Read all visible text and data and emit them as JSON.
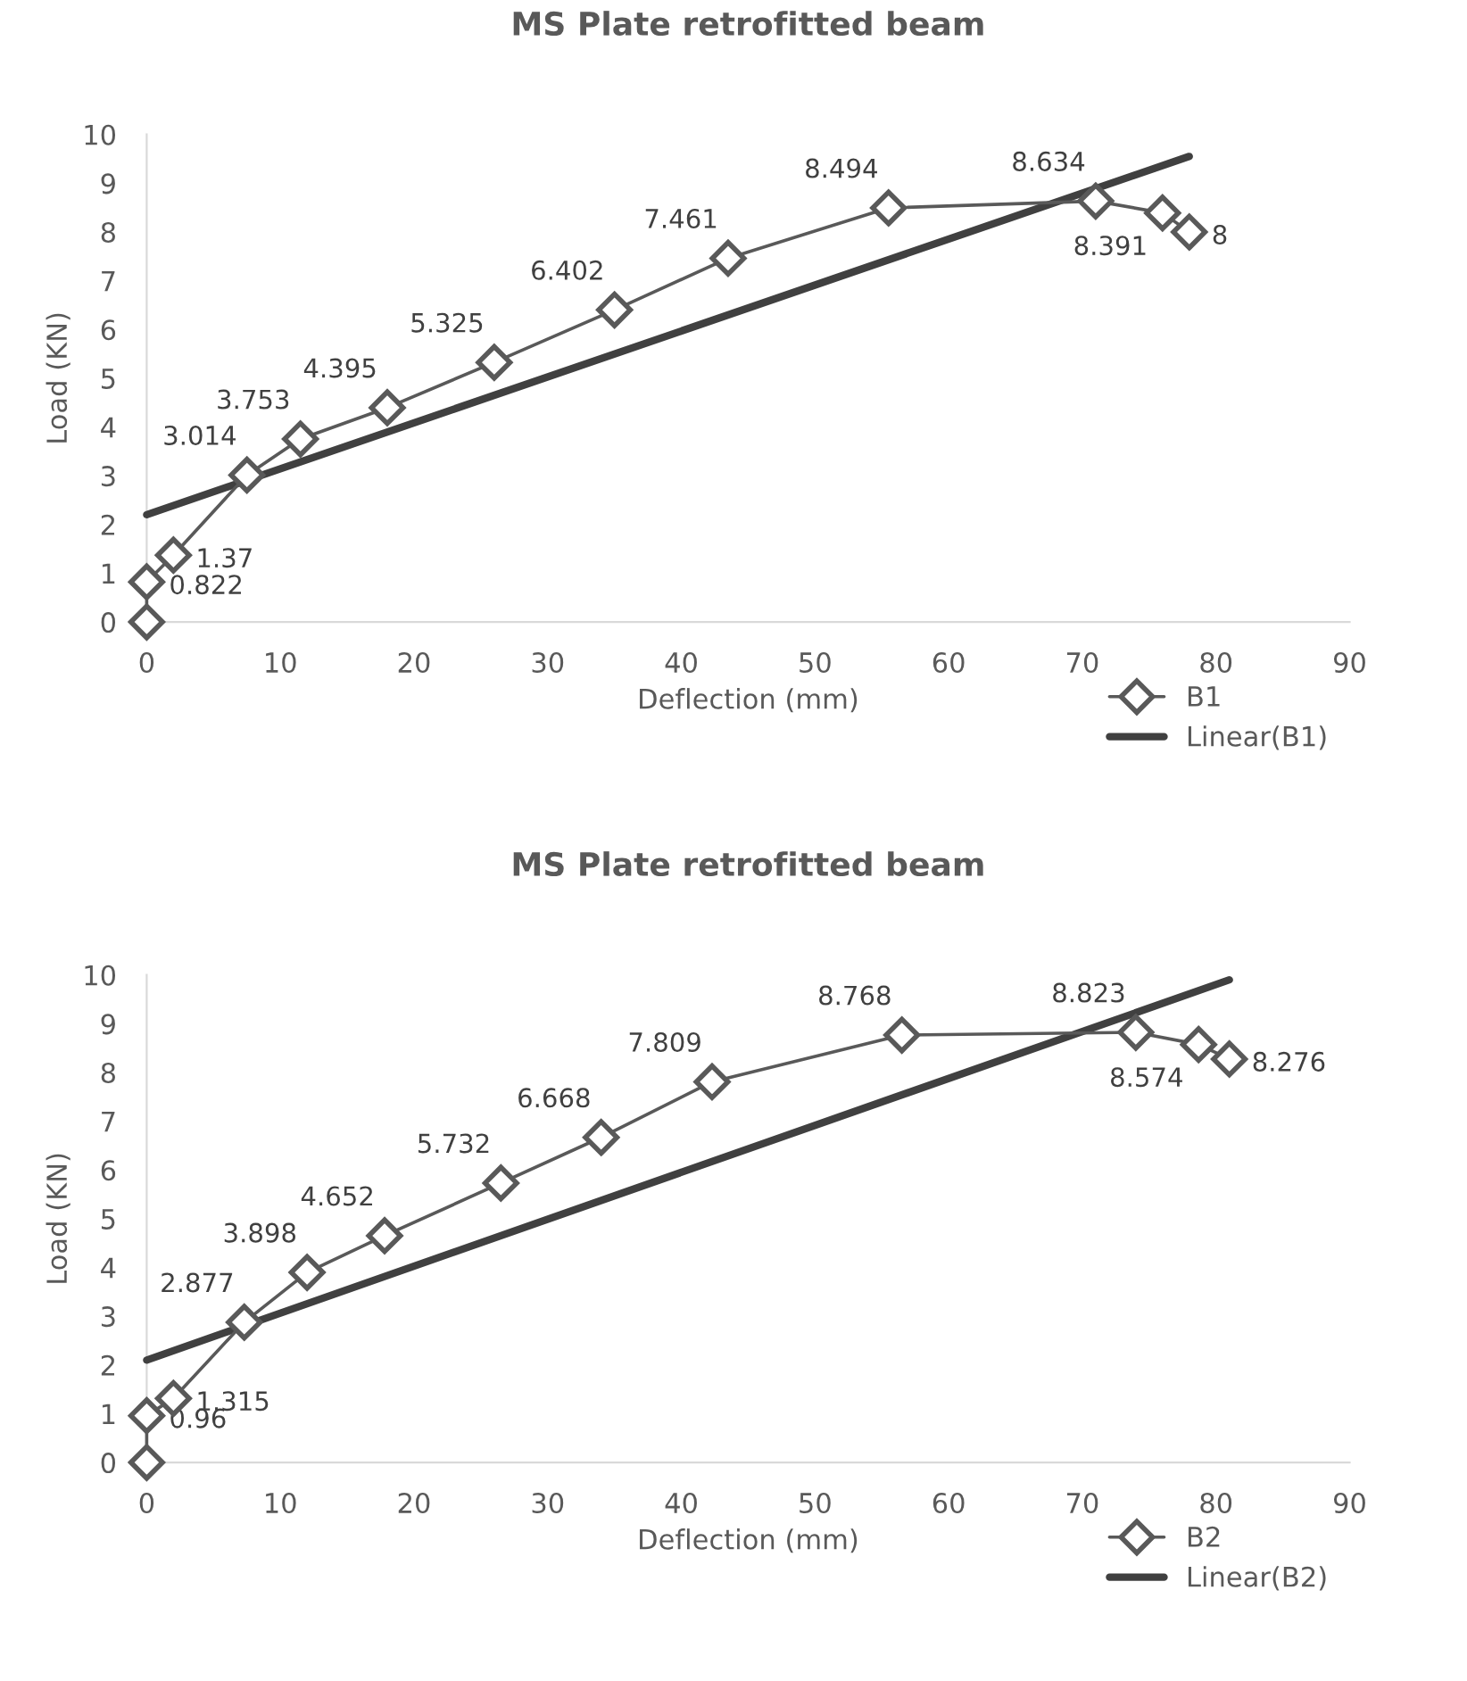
{
  "chart_data": [
    {
      "type": "line",
      "title": "MS Plate retrofitted beam",
      "xlabel": "Deflection (mm)",
      "ylabel": "Load (KN)",
      "xlim": [
        0,
        90
      ],
      "xticks": [
        0,
        10,
        20,
        30,
        40,
        50,
        60,
        70,
        80,
        90
      ],
      "ylim": [
        0,
        10
      ],
      "yticks": [
        0,
        1,
        2,
        3,
        4,
        5,
        6,
        7,
        8,
        9,
        10
      ],
      "grid": false,
      "legend": "bottom right",
      "marker": "diamond",
      "line_style": "solid",
      "series": [
        {
          "name": "B1",
          "color": "#595959",
          "x": [
            0,
            0,
            2,
            7.5,
            11.5,
            18,
            26,
            35,
            43.5,
            55.5,
            71,
            76,
            78
          ],
          "values": [
            0,
            0.822,
            1.37,
            3.014,
            3.753,
            4.395,
            5.325,
            6.402,
            7.461,
            8.494,
            8.634,
            8.391,
            8
          ],
          "value_labels": [
            null,
            "0.822",
            "1.37",
            "3.014",
            "3.753",
            "4.395",
            "5.325",
            "6.402",
            "7.461",
            "8.494",
            "8.634",
            "8.391",
            "8"
          ]
        },
        {
          "name": "Linear(B1)",
          "color": "#404040",
          "marker": "none",
          "x": [
            0,
            78
          ],
          "values": [
            2.2,
            9.55
          ]
        }
      ]
    },
    {
      "type": "line",
      "title": "MS Plate retrofitted beam",
      "xlabel": "Deflection (mm)",
      "ylabel": "Load (KN)",
      "xlim": [
        0,
        90
      ],
      "xticks": [
        0,
        10,
        20,
        30,
        40,
        50,
        60,
        70,
        80,
        90
      ],
      "ylim": [
        0,
        10
      ],
      "yticks": [
        0,
        1,
        2,
        3,
        4,
        5,
        6,
        7,
        8,
        9,
        10
      ],
      "grid": false,
      "legend": "bottom right",
      "marker": "diamond",
      "line_style": "solid",
      "series": [
        {
          "name": "B2",
          "color": "#595959",
          "x": [
            0,
            0,
            2,
            7.3,
            12,
            17.8,
            26.5,
            34,
            42.3,
            56.5,
            74,
            78.7,
            81
          ],
          "values": [
            0,
            0.96,
            1.315,
            2.877,
            3.898,
            4.652,
            5.732,
            6.668,
            7.809,
            8.768,
            8.823,
            8.574,
            8.276
          ],
          "value_labels": [
            null,
            "0.96",
            "1.315",
            "2.877",
            "3.898",
            "4.652",
            "5.732",
            "6.668",
            "7.809",
            "8.768",
            "8.823",
            "8.574",
            "8.276"
          ]
        },
        {
          "name": "Linear(B2)",
          "color": "#404040",
          "marker": "none",
          "x": [
            0,
            81
          ],
          "values": [
            2.1,
            9.9
          ]
        }
      ]
    }
  ]
}
